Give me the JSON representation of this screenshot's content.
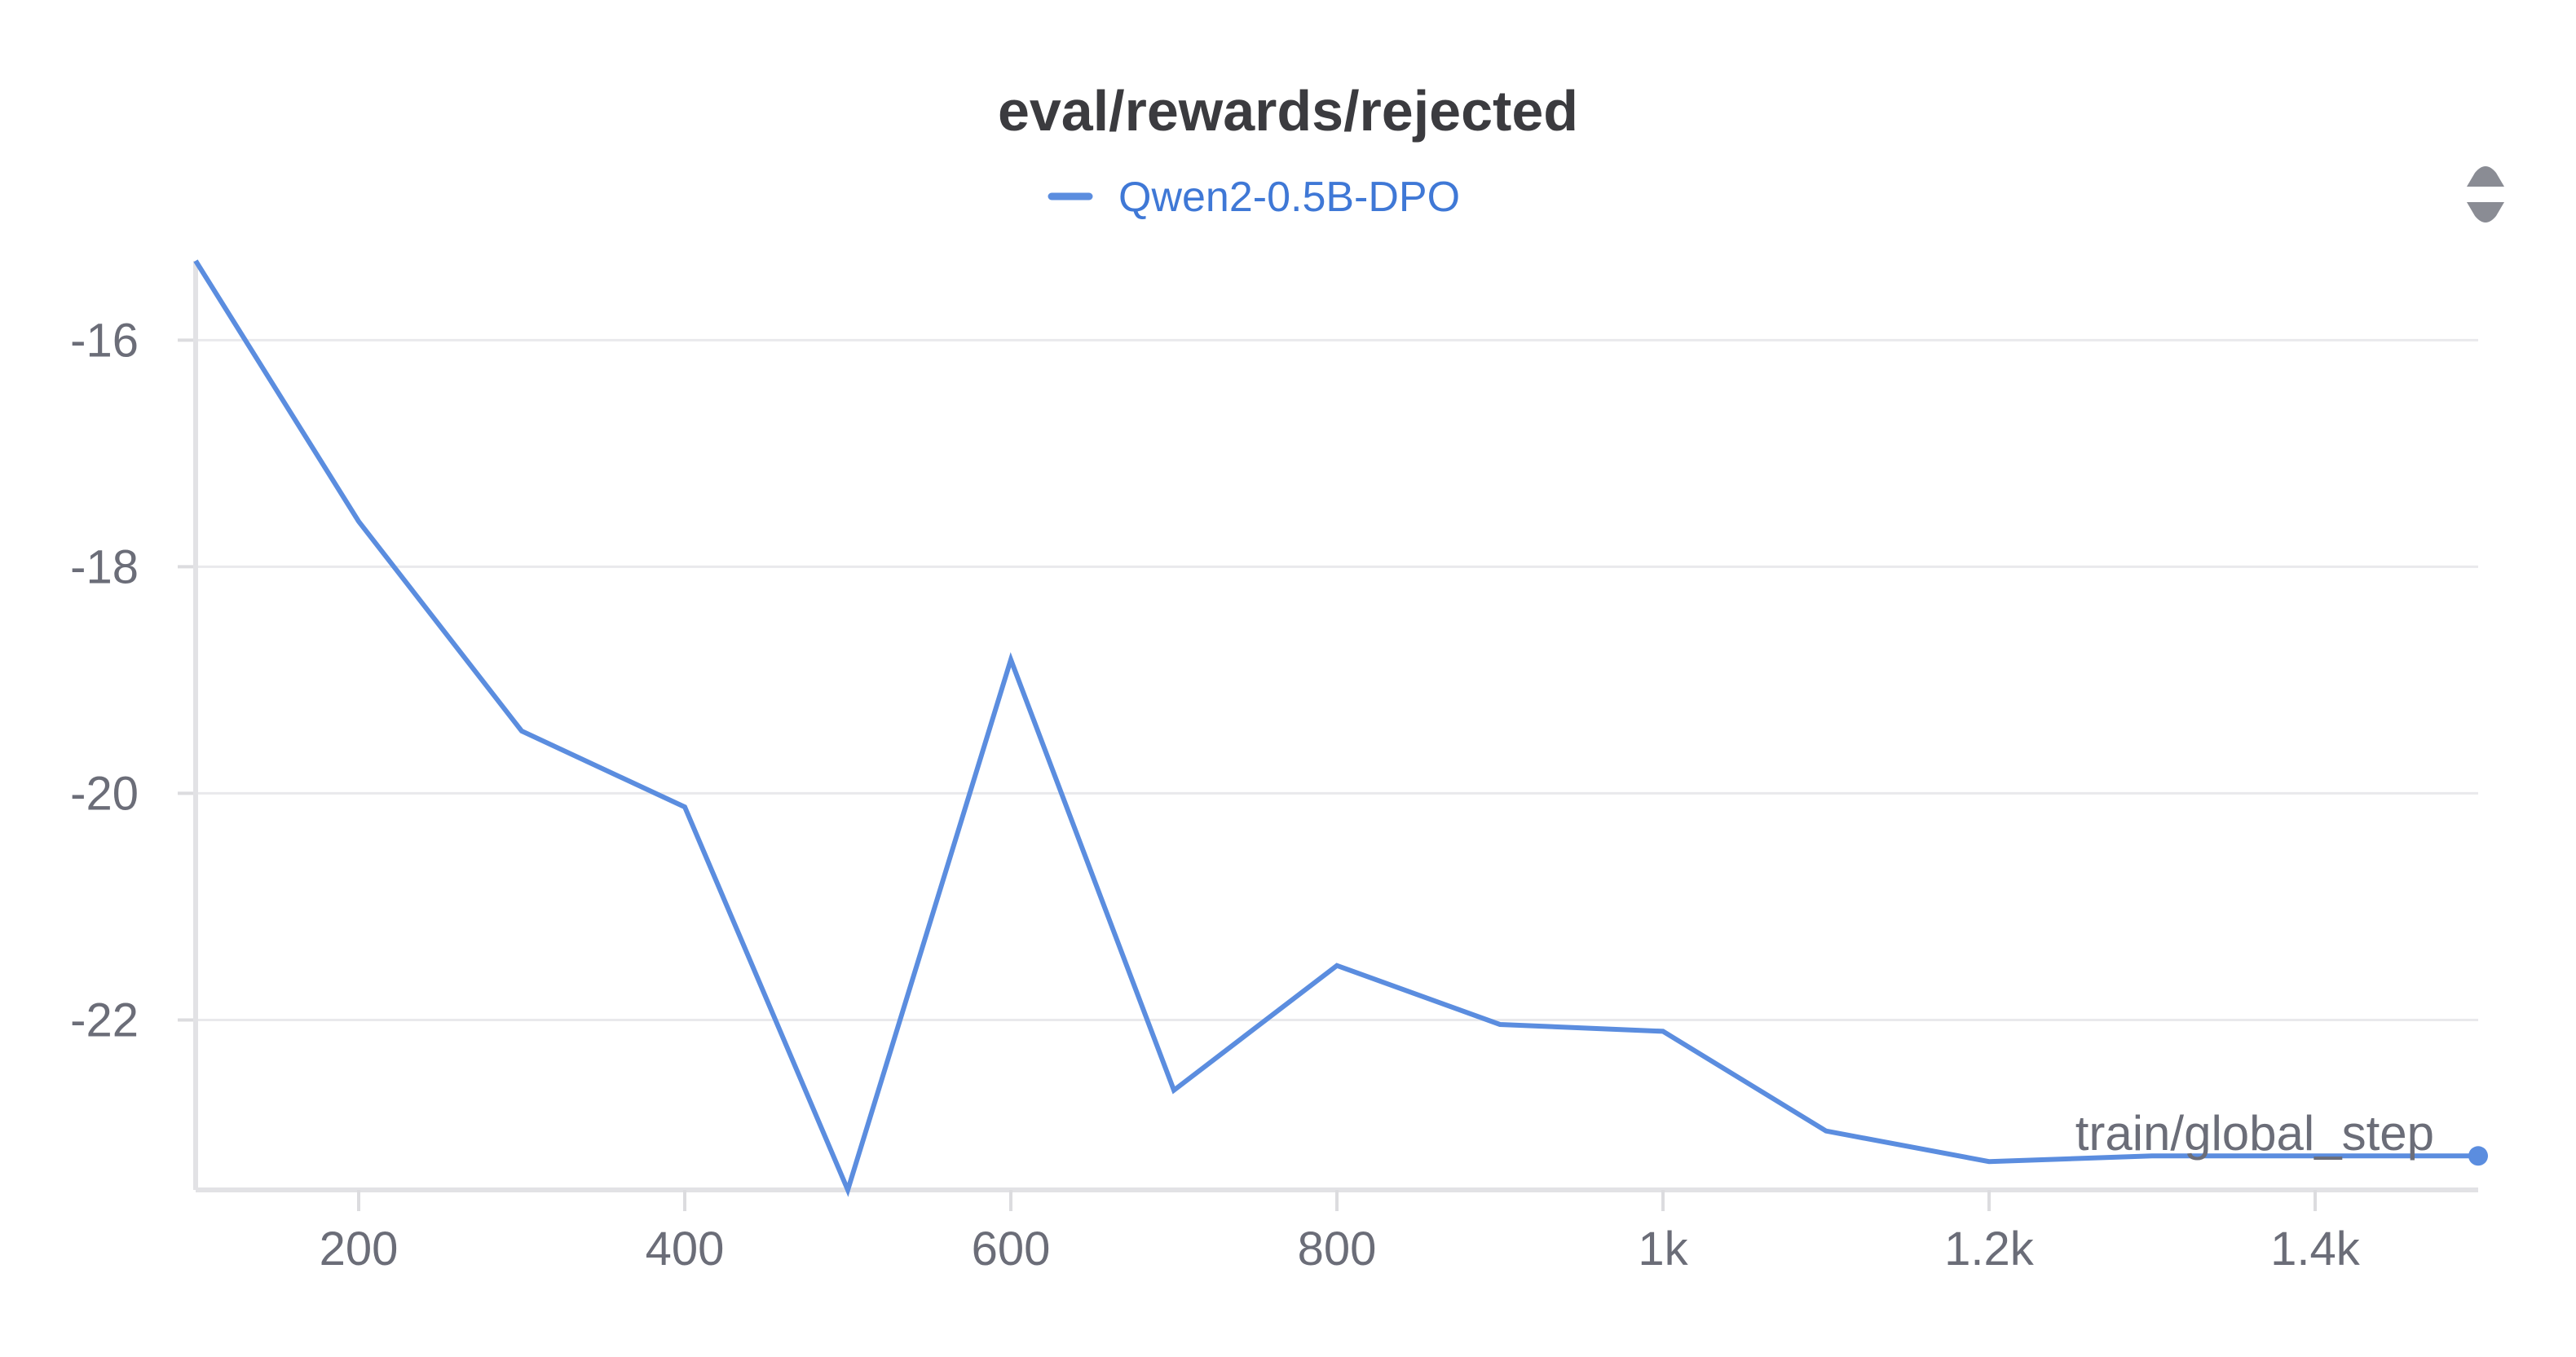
{
  "chart_data": {
    "type": "line",
    "title": "eval/rewards/rejected",
    "xlabel": "train/global_step",
    "ylabel": "",
    "x_ticks": [
      200,
      400,
      600,
      800,
      1000,
      1200,
      1400
    ],
    "x_tick_labels": [
      "200",
      "400",
      "600",
      "800",
      "1k",
      "1.2k",
      "1.4k"
    ],
    "y_ticks": [
      -16,
      -18,
      -20,
      -22
    ],
    "y_tick_labels": [
      "-16",
      "-18",
      "-20",
      "-22"
    ],
    "xlim": [
      100,
      1500
    ],
    "ylim": [
      -23.5,
      -15.3
    ],
    "grid": true,
    "legend_position": "top-center",
    "series": [
      {
        "name": "Qwen2-0.5B-DPO",
        "color": "#5b8ddf",
        "x": [
          100,
          200,
          300,
          400,
          500,
          600,
          700,
          800,
          900,
          1000,
          1100,
          1200,
          1300,
          1400,
          1500
        ],
        "y": [
          -15.3,
          -17.6,
          -19.45,
          -20.12,
          -23.5,
          -18.82,
          -22.62,
          -21.52,
          -22.04,
          -22.1,
          -22.98,
          -23.25,
          -23.2,
          -23.2,
          -23.2
        ]
      }
    ]
  },
  "toolbar": {
    "icon": "sort-arrows-icon"
  }
}
